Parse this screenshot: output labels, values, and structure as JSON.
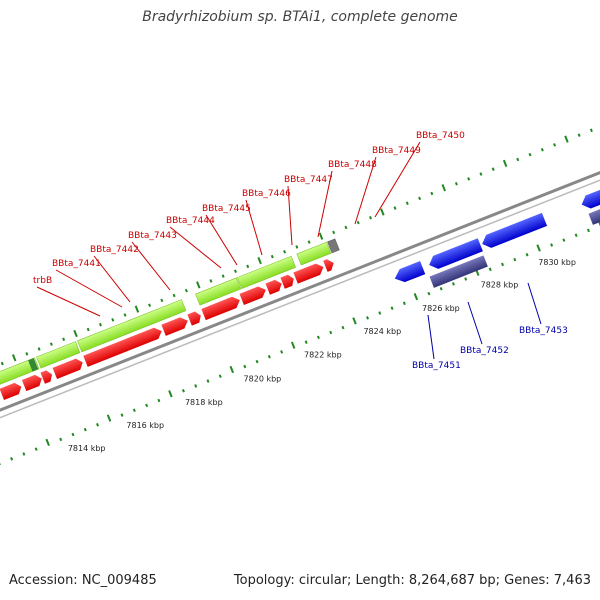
{
  "title": "Bradyrhizobium sp. BTAi1, complete genome",
  "footer": {
    "accession": "Accession: NC_009485",
    "summary": "Topology: circular; Length: 8,264,687 bp; Genes: 7,463"
  },
  "scale_labels": [
    "7814 kbp",
    "7816 kbp",
    "7818 kbp",
    "7820 kbp",
    "7822 kbp",
    "7824 kbp",
    "7826 kbp",
    "7828 kbp",
    "7830 kbp"
  ],
  "forward_gene_labels": [
    "trbB",
    "BBta_7441",
    "BBta_7442",
    "BBta_7443",
    "BBta_7444",
    "BBta_7445",
    "BBta_7446",
    "BBta_7447",
    "BBta_7448",
    "BBta_7449",
    "BBta_7450"
  ],
  "reverse_gene_labels": [
    "BBta_7451",
    "BBta_7452",
    "BBta_7453"
  ],
  "colors": {
    "forward_cds": "#ee0000",
    "forward_gene": "#99ee22",
    "reverse_cds": "#1111dd",
    "reverse_gene": "#444499",
    "forward_label": "#cc0000",
    "reverse_label": "#0000aa",
    "ticks": "#228822",
    "backbone": "#888888"
  }
}
